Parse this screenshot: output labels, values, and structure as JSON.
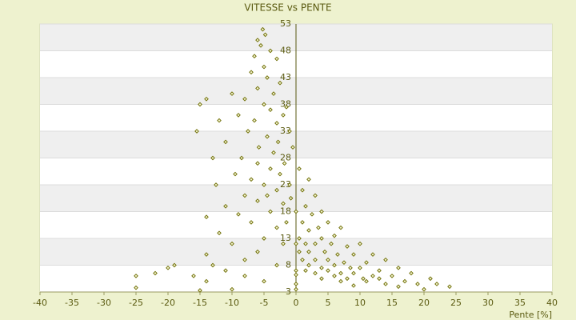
{
  "chart_data": {
    "type": "scatter",
    "title": "VITESSE vs PENTE",
    "x_label": "Pente [%]",
    "xlim": [
      -40,
      40
    ],
    "xticks": [
      -40,
      -35,
      -30,
      -25,
      -20,
      -15,
      -10,
      -5,
      0,
      5,
      10,
      15,
      20,
      25,
      30,
      35,
      40
    ],
    "ylim": [
      3,
      53
    ],
    "yticks": [
      3,
      8,
      13,
      18,
      23,
      28,
      33,
      38,
      43,
      48,
      53
    ],
    "grid": true,
    "color": "#6b6b00",
    "x": [
      -5.2,
      -4.8,
      -6,
      -5.5,
      -4,
      -6.5,
      -3,
      -5,
      -7,
      -4.5,
      -2.5,
      -6,
      -3.5,
      -8,
      -5,
      -1.5,
      -4,
      -9,
      -2,
      -6.5,
      -3,
      -15,
      -14,
      -10,
      -12,
      -15.5,
      -11,
      -7.5,
      -1,
      -4.5,
      -2.8,
      -5.8,
      -0.5,
      -3.5,
      -8.5,
      -13,
      -6,
      -1.8,
      -4,
      0.5,
      -9.5,
      -2.5,
      -7,
      -12.5,
      -5,
      -1,
      2,
      -3,
      1,
      -8,
      -4.5,
      -0.8,
      3,
      -6,
      -2,
      1.5,
      -11,
      -14,
      -9,
      -4,
      0,
      2.5,
      4,
      -7,
      -1.5,
      1,
      5,
      -12,
      -3,
      2,
      3.5,
      7,
      -5,
      0.5,
      4,
      6,
      -10,
      -2,
      1.5,
      3,
      5.5,
      8,
      10,
      -14,
      -6,
      0.5,
      2,
      4.5,
      6.5,
      9,
      12,
      -8,
      1,
      3,
      5,
      7.5,
      11,
      14,
      -19,
      -13,
      -3,
      2,
      4,
      6,
      8.5,
      10,
      13,
      16,
      -20,
      -11,
      1.5,
      5,
      7,
      9,
      12,
      15,
      18,
      -22,
      -16,
      -25,
      -8,
      3,
      6,
      8,
      10.5,
      13,
      17,
      21,
      -14,
      -5,
      4,
      7,
      11,
      14,
      19,
      22,
      24,
      -25,
      -10,
      -15,
      0,
      0,
      9,
      16,
      20,
      0,
      0,
      0
    ],
    "values": [
      52,
      51,
      50,
      49,
      48,
      47,
      46.5,
      45,
      44,
      43,
      42,
      41,
      40,
      39,
      38,
      37.5,
      37,
      36,
      36,
      35,
      34.5,
      38,
      39,
      40,
      35,
      33,
      31,
      33,
      33,
      32,
      31,
      30,
      30,
      29,
      28,
      28,
      27,
      27,
      26,
      26,
      25,
      25,
      24,
      23,
      23,
      23,
      24,
      22,
      22,
      21,
      21,
      20.5,
      21,
      20,
      19.5,
      19,
      19,
      17,
      17.5,
      18,
      18,
      17.5,
      18,
      16,
      16,
      16,
      16,
      14,
      15,
      14.5,
      15,
      15,
      13,
      13,
      13,
      13.5,
      12,
      12,
      12,
      12,
      12,
      11.5,
      12,
      10,
      10.5,
      10.5,
      10.5,
      10.5,
      10,
      10,
      10,
      9,
      9,
      9,
      9,
      8.5,
      8.5,
      9,
      8,
      8,
      8,
      8,
      7.5,
      8,
      7.5,
      7.5,
      7,
      7.5,
      7.5,
      7,
      7,
      7,
      6.5,
      6.5,
      6,
      6,
      6.5,
      6.5,
      6,
      6,
      6,
      6.5,
      6,
      5.5,
      5.5,
      5.5,
      5,
      5.5,
      5,
      5,
      5.5,
      5,
      5,
      4.5,
      4.5,
      4.5,
      4,
      3.8,
      3.5,
      3.3,
      3.5,
      4.5,
      4.2,
      4,
      3.5,
      6.2,
      7,
      12
    ]
  }
}
